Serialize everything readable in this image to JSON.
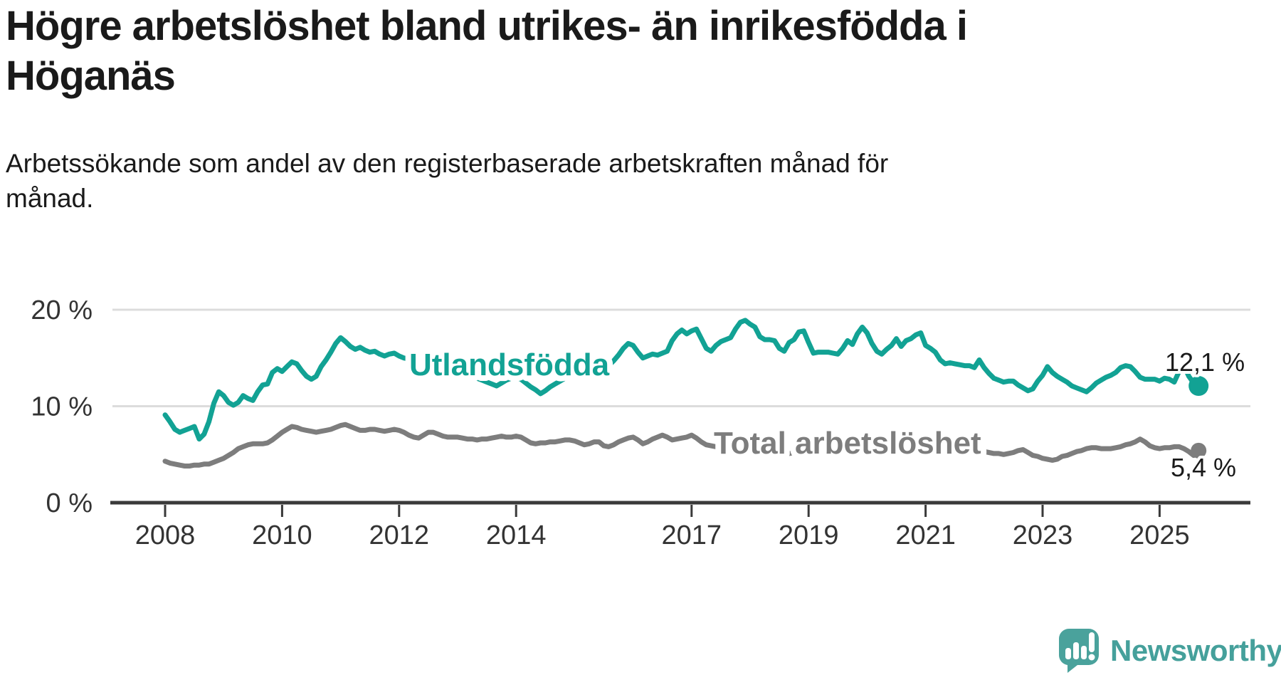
{
  "title": {
    "lines": [
      "Högre arbetslöshet bland utrikes- än inrikesfödda i",
      "Höganäs"
    ]
  },
  "subtitle": {
    "lines": [
      "Arbetssökande som andel av den registerbaserade arbetskraften månad för",
      "månad."
    ]
  },
  "branding": {
    "name": "Newsworthy",
    "icon": "newsworthy-speech-bubble-chart-icon",
    "color": "#45a09b"
  },
  "chart_data": {
    "type": "line",
    "title": "Högre arbetslöshet bland utrikes- än inrikesfödda i Höganäs",
    "subtitle": "Arbetssökande som andel av den registerbaserade arbetskraften månad för månad.",
    "unit": "%",
    "grid": "horizontal",
    "x_interval": "monthly",
    "x_start_year": 2008,
    "x_range": [
      2008,
      2025.67
    ],
    "ylim": [
      0,
      21.5
    ],
    "y_axis": {
      "ticks": [
        {
          "value": 0,
          "label": "0 %"
        },
        {
          "value": 10,
          "label": "10 %"
        },
        {
          "value": 20,
          "label": "20 %"
        }
      ]
    },
    "x_axis": {
      "ticks": [
        {
          "value": 2008,
          "label": "2008"
        },
        {
          "value": 2010,
          "label": "2010"
        },
        {
          "value": 2012,
          "label": "2012"
        },
        {
          "value": 2014,
          "label": "2014"
        },
        {
          "value": 2017,
          "label": "2017"
        },
        {
          "value": 2019,
          "label": "2019"
        },
        {
          "value": 2021,
          "label": "2021"
        },
        {
          "value": 2023,
          "label": "2023"
        },
        {
          "value": 2025,
          "label": "2025"
        }
      ]
    },
    "series": [
      {
        "name": "Utlandsfödda",
        "color": "#12a294",
        "end_value": 12.1,
        "end_label": "12,1 %",
        "values": [
          9.1,
          8.4,
          7.6,
          7.3,
          7.5,
          7.7,
          7.9,
          6.6,
          7.1,
          8.4,
          10.3,
          11.5,
          11.1,
          10.4,
          10.1,
          10.4,
          11.1,
          10.8,
          10.6,
          11.5,
          12.2,
          12.3,
          13.5,
          13.9,
          13.6,
          14.1,
          14.6,
          14.4,
          13.7,
          13.1,
          12.8,
          13.1,
          14.1,
          14.8,
          15.6,
          16.5,
          17.1,
          16.7,
          16.2,
          15.9,
          16.1,
          15.8,
          15.6,
          15.7,
          15.4,
          15.2,
          15.4,
          15.5,
          15.2,
          15.0,
          14.9,
          14.7,
          14.6,
          14.5,
          14.6,
          14.3,
          14.1,
          14.0,
          13.8,
          13.7,
          13.8,
          13.6,
          13.4,
          13.2,
          12.9,
          12.7,
          12.5,
          12.3,
          12.1,
          12.4,
          12.7,
          12.9,
          13.0,
          12.8,
          12.4,
          12.0,
          11.7,
          11.3,
          11.6,
          12.0,
          12.3,
          12.6,
          12.9,
          13.1,
          13.2,
          13.4,
          13.5,
          13.7,
          13.9,
          14.0,
          14.1,
          14.2,
          14.7,
          15.3,
          16.0,
          16.5,
          16.3,
          15.6,
          15.0,
          15.2,
          15.4,
          15.3,
          15.5,
          15.7,
          16.8,
          17.5,
          17.9,
          17.5,
          17.8,
          18.0,
          17.0,
          16.0,
          15.7,
          16.3,
          16.7,
          16.9,
          17.1,
          18.0,
          18.7,
          18.9,
          18.5,
          18.2,
          17.2,
          16.9,
          16.9,
          16.8,
          16.0,
          15.7,
          16.6,
          16.9,
          17.7,
          17.8,
          16.6,
          15.5,
          15.6,
          15.6,
          15.6,
          15.5,
          15.4,
          16.0,
          16.8,
          16.4,
          17.5,
          18.2,
          17.6,
          16.5,
          15.7,
          15.4,
          15.9,
          16.3,
          17.0,
          16.2,
          16.8,
          17.0,
          17.4,
          17.6,
          16.3,
          16.0,
          15.6,
          14.8,
          14.4,
          14.5,
          14.4,
          14.3,
          14.2,
          14.2,
          14.0,
          14.8,
          14.0,
          13.4,
          12.9,
          12.7,
          12.5,
          12.6,
          12.6,
          12.2,
          11.9,
          11.6,
          11.8,
          12.6,
          13.2,
          14.1,
          13.5,
          13.1,
          12.8,
          12.5,
          12.1,
          11.9,
          11.7,
          11.5,
          11.9,
          12.4,
          12.7,
          13.0,
          13.2,
          13.5,
          14.0,
          14.2,
          14.1,
          13.6,
          13.0,
          12.8,
          12.8,
          12.8,
          12.6,
          12.9,
          12.8,
          12.5,
          13.6,
          14.2,
          13.1,
          12.4,
          12.1
        ]
      },
      {
        "name": "Total arbetslöshet",
        "color": "#7d7d7d",
        "end_value": 5.4,
        "end_label": "5,4 %",
        "values": [
          4.3,
          4.1,
          4.0,
          3.9,
          3.8,
          3.8,
          3.9,
          3.9,
          4.0,
          4.0,
          4.2,
          4.4,
          4.6,
          4.9,
          5.2,
          5.6,
          5.8,
          6.0,
          6.1,
          6.1,
          6.1,
          6.2,
          6.5,
          6.9,
          7.3,
          7.6,
          7.9,
          7.8,
          7.6,
          7.5,
          7.4,
          7.3,
          7.4,
          7.5,
          7.6,
          7.8,
          8.0,
          8.1,
          7.9,
          7.7,
          7.5,
          7.5,
          7.6,
          7.6,
          7.5,
          7.4,
          7.5,
          7.6,
          7.5,
          7.3,
          7.0,
          6.8,
          6.7,
          7.0,
          7.3,
          7.3,
          7.1,
          6.9,
          6.8,
          6.8,
          6.8,
          6.7,
          6.6,
          6.6,
          6.5,
          6.6,
          6.6,
          6.7,
          6.8,
          6.9,
          6.8,
          6.8,
          6.9,
          6.8,
          6.5,
          6.2,
          6.1,
          6.2,
          6.2,
          6.3,
          6.3,
          6.4,
          6.5,
          6.5,
          6.4,
          6.2,
          6.0,
          6.1,
          6.3,
          6.3,
          5.9,
          5.8,
          6.0,
          6.3,
          6.5,
          6.7,
          6.8,
          6.5,
          6.1,
          6.3,
          6.6,
          6.8,
          7.0,
          6.8,
          6.5,
          6.6,
          6.7,
          6.8,
          7.0,
          6.7,
          6.3,
          6.0,
          5.9,
          5.8,
          5.7,
          5.6,
          5.6,
          5.5,
          5.5,
          5.6,
          5.6,
          5.5,
          5.4,
          5.3,
          5.2,
          5.2,
          5.1,
          5.0,
          5.1,
          5.2,
          5.2,
          5.3,
          5.4,
          5.4,
          5.3,
          5.2,
          5.2,
          5.3,
          5.4,
          5.4,
          5.3,
          5.4,
          5.5,
          5.6,
          5.7,
          5.8,
          6.0,
          6.5,
          6.8,
          7.0,
          7.0,
          6.9,
          6.8,
          6.7,
          6.6,
          6.6,
          6.6,
          6.5,
          6.4,
          6.2,
          6.0,
          5.9,
          5.8,
          5.6,
          5.5,
          5.4,
          5.3,
          5.3,
          5.3,
          5.2,
          5.1,
          5.1,
          5.0,
          5.1,
          5.2,
          5.4,
          5.5,
          5.2,
          4.9,
          4.8,
          4.6,
          4.5,
          4.4,
          4.5,
          4.8,
          4.9,
          5.1,
          5.3,
          5.4,
          5.6,
          5.7,
          5.7,
          5.6,
          5.6,
          5.6,
          5.7,
          5.8,
          6.0,
          6.1,
          6.3,
          6.6,
          6.3,
          5.9,
          5.7,
          5.6,
          5.7,
          5.7,
          5.8,
          5.8,
          5.6,
          5.3,
          4.9,
          5.4
        ]
      }
    ]
  }
}
